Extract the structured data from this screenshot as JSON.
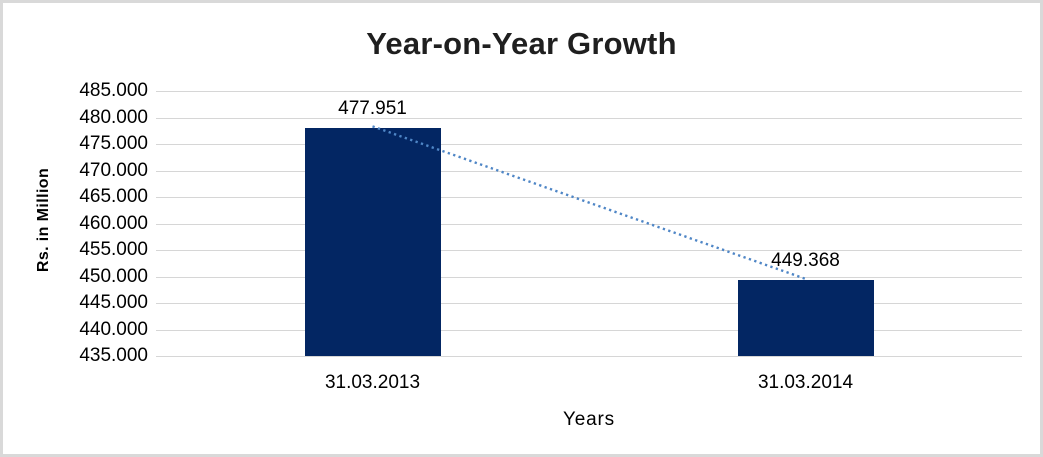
{
  "chart_data": {
    "type": "bar",
    "title": "Year-on-Year Growth",
    "xlabel": "Years",
    "ylabel": "Rs. in Million",
    "categories": [
      "31.03.2013",
      "31.03.2014"
    ],
    "values": [
      477.951,
      449.368
    ],
    "data_labels": [
      "477.951",
      "449.368"
    ],
    "ylim": [
      435,
      485
    ],
    "ytick_step": 5,
    "ytick_labels": [
      "485.000",
      "480.000",
      "475.000",
      "470.000",
      "465.000",
      "460.000",
      "455.000",
      "450.000",
      "445.000",
      "440.000",
      "435.000"
    ],
    "grid": true,
    "legend_position": "none",
    "trendline": {
      "type": "linear",
      "style": "dotted",
      "connects": [
        "31.03.2013",
        "31.03.2014"
      ]
    },
    "colors": {
      "bar": "#032663",
      "trendline": "#4f86c6",
      "gridline": "#d6d6d6",
      "title_text": "#1f1f1f",
      "axis_text": "#000000",
      "frame_border": "#d9d9d9",
      "background": "#ffffff"
    }
  }
}
